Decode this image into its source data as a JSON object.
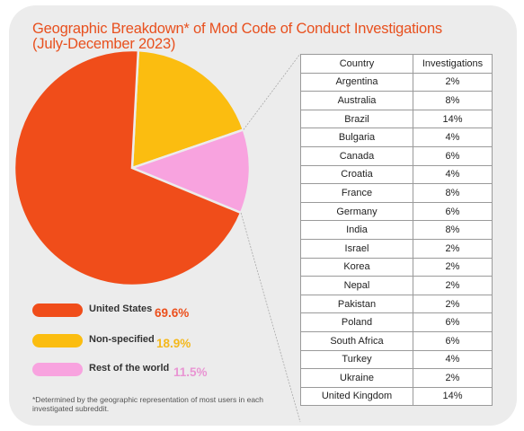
{
  "title": "Geographic Breakdown* of Mod Code of Conduct Investigations (July-December 2023)",
  "colors": {
    "united_states": "#f04d1a",
    "non_specified": "#fbbd10",
    "rest_of_world": "#f8a3df",
    "title": "#e8501e"
  },
  "chart_data": [
    {
      "type": "pie",
      "title": "",
      "slices": [
        {
          "label": "United States",
          "value": 69.6,
          "display": "69.6%",
          "color": "#f04d1a",
          "label_color": "#ec4f1c"
        },
        {
          "label": "Non-specified",
          "value": 18.9,
          "display": "18.9%",
          "color": "#fbbd10",
          "label_color": "#f4b81c"
        },
        {
          "label": "Rest of the world",
          "value": 11.5,
          "display": "11.5%",
          "color": "#f8a3df",
          "label_color": "#e995d3"
        }
      ]
    },
    {
      "type": "table",
      "columns": [
        "Country",
        "Investigations"
      ],
      "rows": [
        [
          "Argentina",
          "2%"
        ],
        [
          "Australia",
          "8%"
        ],
        [
          "Brazil",
          "14%"
        ],
        [
          "Bulgaria",
          "4%"
        ],
        [
          "Canada",
          "6%"
        ],
        [
          "Croatia",
          "4%"
        ],
        [
          "France",
          "8%"
        ],
        [
          "Germany",
          "6%"
        ],
        [
          "India",
          "8%"
        ],
        [
          "Israel",
          "2%"
        ],
        [
          "Korea",
          "2%"
        ],
        [
          "Nepal",
          "2%"
        ],
        [
          "Pakistan",
          "2%"
        ],
        [
          "Poland",
          "6%"
        ],
        [
          "South Africa",
          "6%"
        ],
        [
          "Turkey",
          "4%"
        ],
        [
          "Ukraine",
          "2%"
        ],
        [
          "United Kingdom",
          "14%"
        ]
      ]
    }
  ],
  "footnote": "*Determined by the geographic representation of most users in each investigated subreddit."
}
